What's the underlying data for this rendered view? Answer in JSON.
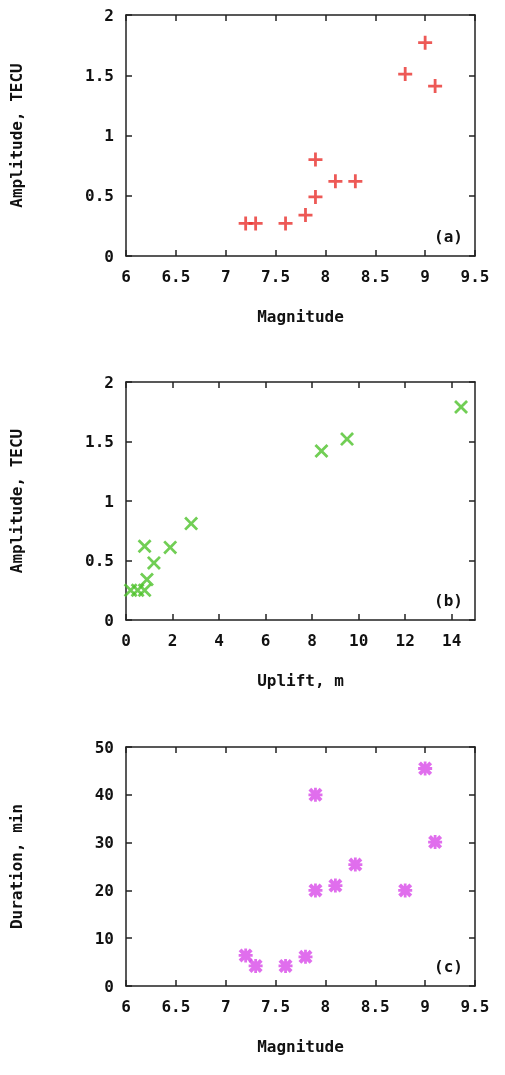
{
  "chart_data": [
    {
      "type": "scatter",
      "xlabel": "Magnitude",
      "ylabel": "Amplitude, TECU",
      "annotations": [
        "(a)"
      ],
      "marker": "plus",
      "x": [
        7.2,
        7.3,
        7.6,
        7.8,
        7.9,
        7.9,
        8.1,
        8.3,
        8.8,
        9.0,
        9.1
      ],
      "series": [
        {
          "color": "#e8302c",
          "values": [
            0.27,
            0.27,
            0.27,
            0.34,
            0.49,
            0.8,
            0.62,
            0.62,
            1.51,
            1.77,
            1.41
          ]
        }
      ],
      "xlim": [
        6,
        9.5
      ],
      "xticks": [
        6,
        6.5,
        7,
        7.5,
        8,
        8.5,
        9,
        9.5
      ],
      "ylim": [
        0,
        2
      ],
      "yticks": [
        0,
        0.5,
        1,
        1.5,
        2
      ]
    },
    {
      "type": "scatter",
      "xlabel": "Uplift, m",
      "ylabel": "Amplitude, TECU",
      "annotations": [
        "(b)"
      ],
      "marker": "cross",
      "x": [
        0.2,
        0.5,
        0.8,
        0.9,
        1.2,
        0.8,
        1.9,
        2.8,
        8.4,
        9.5,
        14.4
      ],
      "series": [
        {
          "color": "#4dc22a",
          "values": [
            0.25,
            0.25,
            0.25,
            0.34,
            0.48,
            0.62,
            0.61,
            0.81,
            1.42,
            1.52,
            1.79
          ]
        }
      ],
      "xlim": [
        0,
        15
      ],
      "xticks": [
        0,
        2,
        4,
        6,
        8,
        10,
        12,
        14
      ],
      "ylim": [
        0,
        2
      ],
      "yticks": [
        0,
        0.5,
        1,
        1.5,
        2
      ]
    },
    {
      "type": "scatter",
      "xlabel": "Magnitude",
      "ylabel": "Duration, min",
      "annotations": [
        "(c)"
      ],
      "marker": "star",
      "x": [
        7.2,
        7.3,
        7.6,
        7.8,
        7.9,
        7.9,
        8.1,
        8.3,
        8.8,
        9.0,
        9.1
      ],
      "series": [
        {
          "color": "#d84ae8",
          "values": [
            6.4,
            4.2,
            4.2,
            6.1,
            20,
            40,
            21,
            25.4,
            20,
            45.5,
            30.1
          ]
        }
      ],
      "xlim": [
        6,
        9.5
      ],
      "xticks": [
        6,
        6.5,
        7,
        7.5,
        8,
        8.5,
        9,
        9.5
      ],
      "ylim": [
        0,
        50
      ],
      "yticks": [
        0,
        10,
        20,
        30,
        40,
        50
      ]
    }
  ]
}
